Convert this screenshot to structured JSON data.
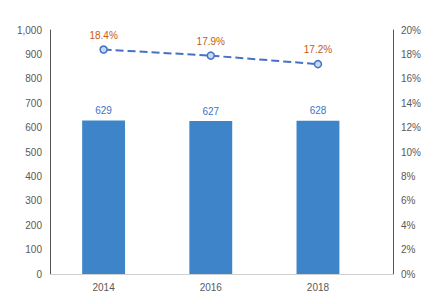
{
  "chart_data": {
    "type": "bar",
    "x": [
      2014,
      2016,
      2018
    ],
    "xlim": [
      2013.0,
      2019.4
    ],
    "xticks": [
      2014,
      2016,
      2018
    ],
    "ylim": [
      0,
      1000
    ],
    "yticks": [
      0,
      100,
      200,
      300,
      400,
      500,
      600,
      700,
      800,
      900,
      {
        "value": 1000,
        "label": "1,000"
      }
    ],
    "y2lim": [
      0,
      20
    ],
    "y2ticks": [
      {
        "value": 0,
        "label": "0%"
      },
      {
        "value": 2,
        "label": "2%"
      },
      {
        "value": 4,
        "label": "4%"
      },
      {
        "value": 6,
        "label": "6%"
      },
      {
        "value": 8,
        "label": "8%"
      },
      {
        "value": 10,
        "label": "10%"
      },
      {
        "value": 12,
        "label": "12%"
      },
      {
        "value": 14,
        "label": "14%"
      },
      {
        "value": 16,
        "label": "16%"
      },
      {
        "value": 18,
        "label": "18%"
      },
      {
        "value": 20,
        "label": "20%"
      }
    ],
    "grid": false,
    "series": [
      {
        "type": "bar",
        "color": "#3d85c8",
        "values": [
          629,
          627,
          628
        ],
        "data_labels": true
      },
      {
        "type": "line",
        "axis": "y2",
        "color": "#4472c4",
        "line_style": "dashed",
        "marker": "circle",
        "values": [
          18.4,
          17.9,
          17.2
        ],
        "data_labels": true,
        "value_labels": [
          "18.4%",
          "17.9%",
          "17.2%"
        ]
      }
    ]
  }
}
